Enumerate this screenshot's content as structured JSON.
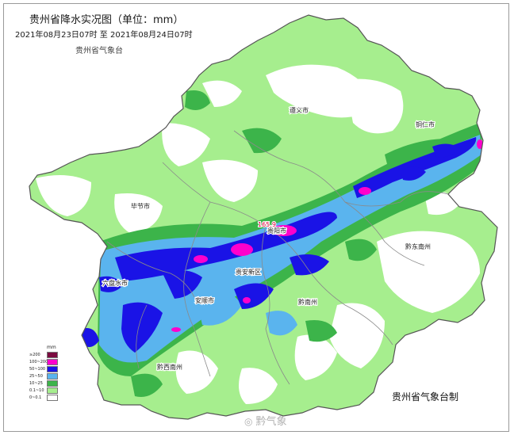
{
  "header": {
    "title": "贵州省降水实况图（单位：mm）",
    "period": "2021年08月23日07时  至  2021年08月24日07时",
    "source": "贵州省气象台"
  },
  "footer": {
    "credit": "贵州省气象台制",
    "watermark": "黔气象",
    "watermark_icon": "weibo-icon"
  },
  "legend": {
    "unit": "mm",
    "items": [
      {
        "label": "≥200",
        "color": "#7a0b3f"
      },
      {
        "label": "100~200",
        "color": "#ff00cc"
      },
      {
        "label": "50~100",
        "color": "#1a13e6"
      },
      {
        "label": "25~50",
        "color": "#5ab4ee"
      },
      {
        "label": "10~25",
        "color": "#3cb44a"
      },
      {
        "label": "0.1~10",
        "color": "#a6ee8e"
      },
      {
        "label": "0~0.1",
        "color": "#ffffff"
      }
    ]
  },
  "cities": [
    {
      "name": "遵义市",
      "id": "zunyi"
    },
    {
      "name": "铜仁市",
      "id": "tongren"
    },
    {
      "name": "毕节市",
      "id": "bijie"
    },
    {
      "name": "贵阳市",
      "id": "guiyang"
    },
    {
      "name": "黔东南州",
      "id": "qiandongnan"
    },
    {
      "name": "六盘水市",
      "id": "liupanshui"
    },
    {
      "name": "安顺市",
      "id": "anshun"
    },
    {
      "name": "黔南州",
      "id": "qiannan"
    },
    {
      "name": "黔西南州",
      "id": "qianxinan"
    },
    {
      "name": "贵安新区",
      "id": "guian"
    }
  ],
  "station_label": "165.9",
  "colors": {
    "boundary": "#8a8a8a",
    "outline": "#555555"
  }
}
